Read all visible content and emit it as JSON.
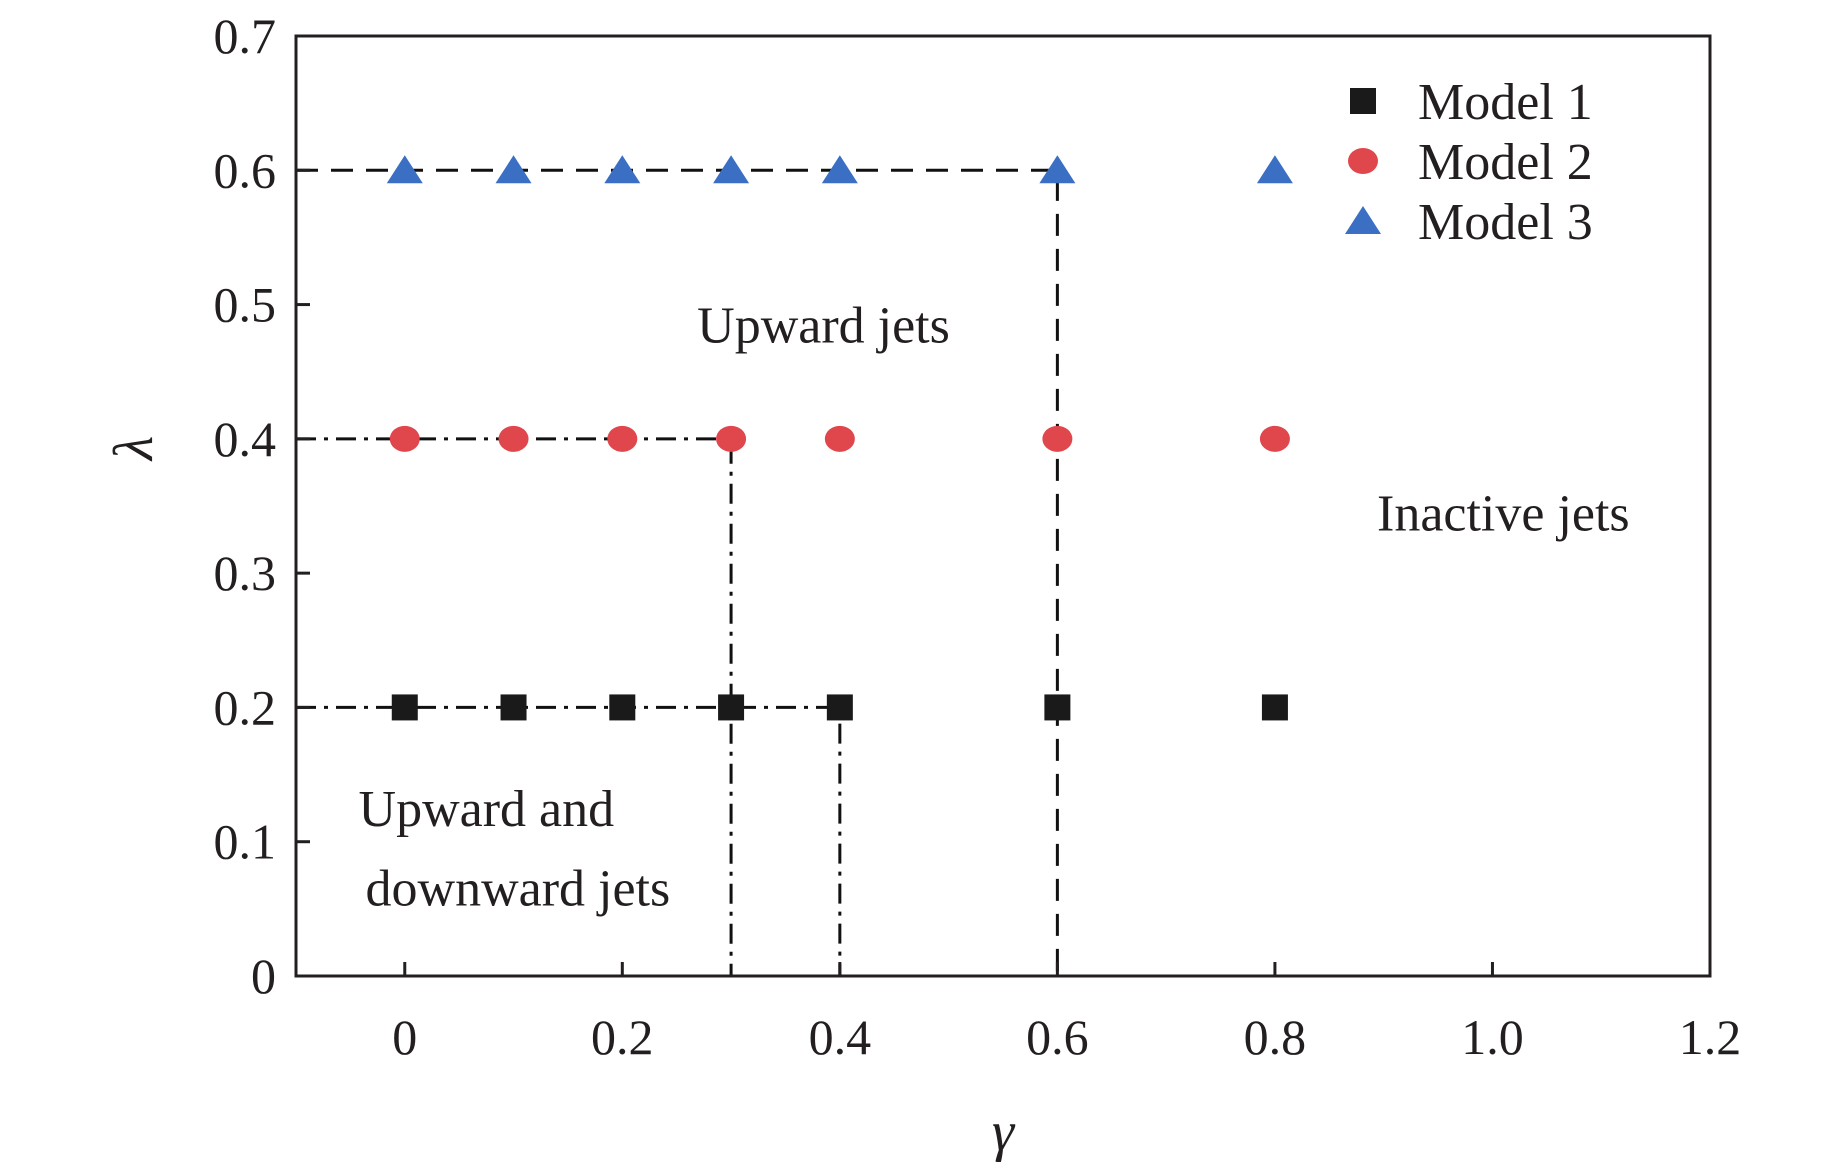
{
  "colors": {
    "model1": "#1a1a1a",
    "model2": "#e0474c",
    "model3": "#3a6fc4",
    "axis": "#231f20"
  },
  "chart_data": {
    "type": "scatter",
    "title": "",
    "xlabel": "γ",
    "ylabel": "λ",
    "xlim": [
      -0.1,
      1.2
    ],
    "ylim": [
      0,
      0.7
    ],
    "grid": false,
    "legend_position": "top-right",
    "xticks": [
      0,
      0.2,
      0.4,
      0.6,
      0.8,
      1.0,
      1.2
    ],
    "xtick_labels": [
      "0",
      "0.2",
      "0.4",
      "0.6",
      "0.8",
      "1.0",
      "1.2"
    ],
    "yticks": [
      0,
      0.1,
      0.2,
      0.3,
      0.4,
      0.5,
      0.6,
      0.7
    ],
    "ytick_labels": [
      "0",
      "0.1",
      "0.2",
      "0.3",
      "0.4",
      "0.5",
      "0.6",
      "0.7"
    ],
    "series": [
      {
        "name": "Model 1",
        "marker": "square",
        "x": [
          0,
          0.1,
          0.2,
          0.3,
          0.4,
          0.6,
          0.8
        ],
        "y": [
          0.2,
          0.2,
          0.2,
          0.2,
          0.2,
          0.2,
          0.2
        ]
      },
      {
        "name": "Model 2",
        "marker": "circle",
        "x": [
          0,
          0.1,
          0.2,
          0.3,
          0.4,
          0.6,
          0.8
        ],
        "y": [
          0.4,
          0.4,
          0.4,
          0.4,
          0.4,
          0.4,
          0.4
        ]
      },
      {
        "name": "Model 3",
        "marker": "triangle",
        "x": [
          0,
          0.1,
          0.2,
          0.3,
          0.4,
          0.6,
          0.8
        ],
        "y": [
          0.6,
          0.6,
          0.6,
          0.6,
          0.6,
          0.6,
          0.6
        ]
      }
    ],
    "boundaries": [
      {
        "style": "dashed",
        "points": [
          [
            -0.1,
            0.6
          ],
          [
            0.6,
            0.6
          ],
          [
            0.6,
            0
          ]
        ]
      },
      {
        "style": "dashdot",
        "points": [
          [
            -0.1,
            0.4
          ],
          [
            0.3,
            0.4
          ],
          [
            0.3,
            0
          ]
        ]
      },
      {
        "style": "dashdot",
        "points": [
          [
            -0.1,
            0.2
          ],
          [
            0.4,
            0.2
          ],
          [
            0.4,
            0
          ]
        ]
      }
    ],
    "annotations": [
      {
        "text": "Upward jets",
        "x": 0.385,
        "y": 0.485
      },
      {
        "text": "Inactive jets",
        "x": 1.01,
        "y": 0.345
      },
      {
        "text": "Upward and",
        "x": 0.075,
        "y": 0.125
      },
      {
        "text": "downward jets",
        "x": 0.104,
        "y": 0.066
      }
    ]
  }
}
